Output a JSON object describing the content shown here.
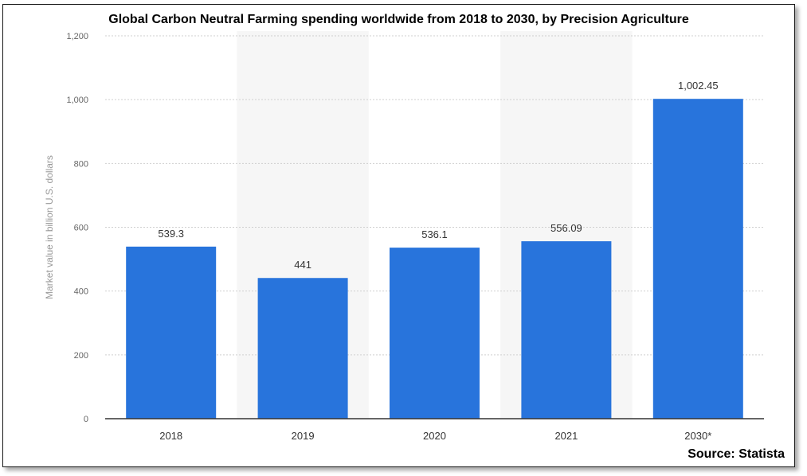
{
  "chart_data": {
    "type": "bar",
    "title": "Global Carbon Neutral Farming spending worldwide from 2018 to 2030, by Precision Agriculture",
    "ylabel": "Market value in billion U.S. dollars",
    "xlabel": "",
    "categories": [
      "2018",
      "2019",
      "2020",
      "2021",
      "2030*"
    ],
    "values": [
      539.3,
      441,
      536.1,
      556.09,
      1002.45
    ],
    "value_labels": [
      "539.3",
      "441",
      "536.1",
      "556.09",
      "1,002.45"
    ],
    "ylim": [
      0,
      1200
    ],
    "yticks": [
      0,
      200,
      400,
      600,
      800,
      1000,
      1200
    ],
    "ytick_labels": [
      "0",
      "200",
      "400",
      "600",
      "800",
      "1,000",
      "1,200"
    ],
    "grid": true,
    "bar_color": "#2874dc",
    "alternate_band_color": "#f6f6f6"
  },
  "source": "Source: Statista"
}
